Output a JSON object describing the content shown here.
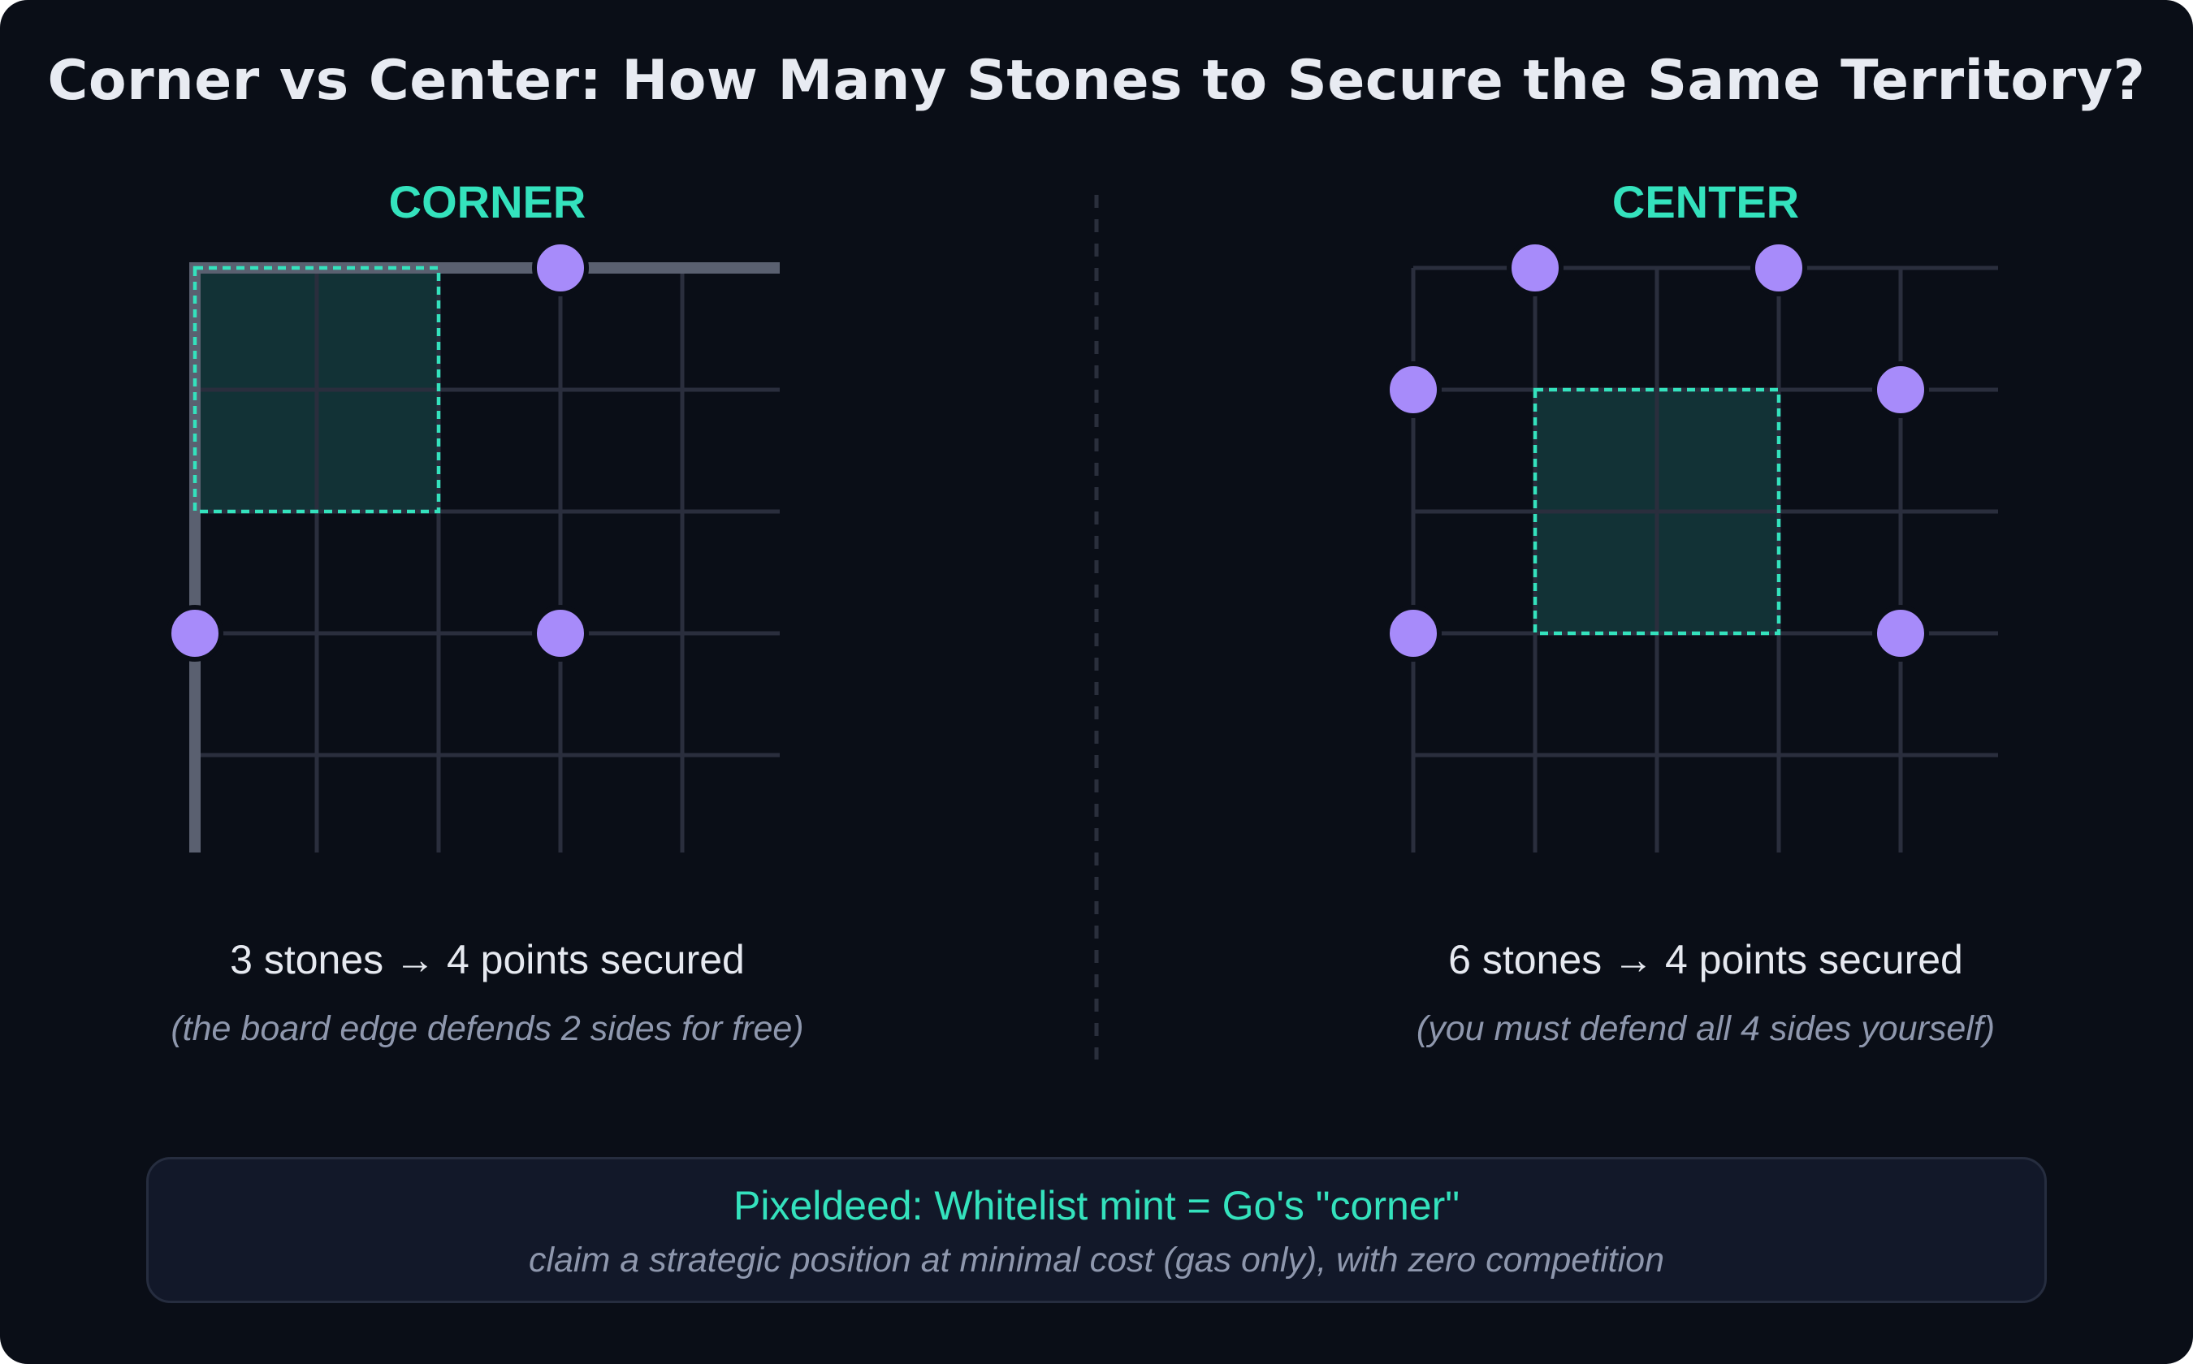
{
  "title": "Corner vs Center: How Many Stones to Secure the Same Territory?",
  "colors": {
    "background": "#0a0e17",
    "accent": "#34e2bd",
    "stone": "#a78bfa",
    "grid": "#2a2e3d",
    "board_edge": "#5a6070",
    "territory_fill": "#123236",
    "callout_bg": "#121829"
  },
  "corner": {
    "label": "CORNER",
    "stones_line": "3 stones → 4 points secured",
    "note": "(the board edge defends 2 sides for free)",
    "stones": [
      [
        3,
        0
      ],
      [
        0,
        3
      ],
      [
        3,
        3
      ]
    ],
    "territory": [
      0,
      0,
      2,
      2
    ]
  },
  "center": {
    "label": "CENTER",
    "stones_line": "6 stones → 4 points secured",
    "note": "(you must defend all 4 sides yourself)",
    "stones": [
      [
        1,
        0
      ],
      [
        3,
        0
      ],
      [
        0,
        1
      ],
      [
        4,
        1
      ],
      [
        0,
        3
      ],
      [
        4,
        3
      ]
    ],
    "territory": [
      1,
      1,
      3,
      3
    ]
  },
  "callout": {
    "title": "Pixeldeed: Whitelist mint = Go's \"corner\"",
    "subtitle": "claim a strategic position at minimal cost (gas only), with zero competition"
  }
}
